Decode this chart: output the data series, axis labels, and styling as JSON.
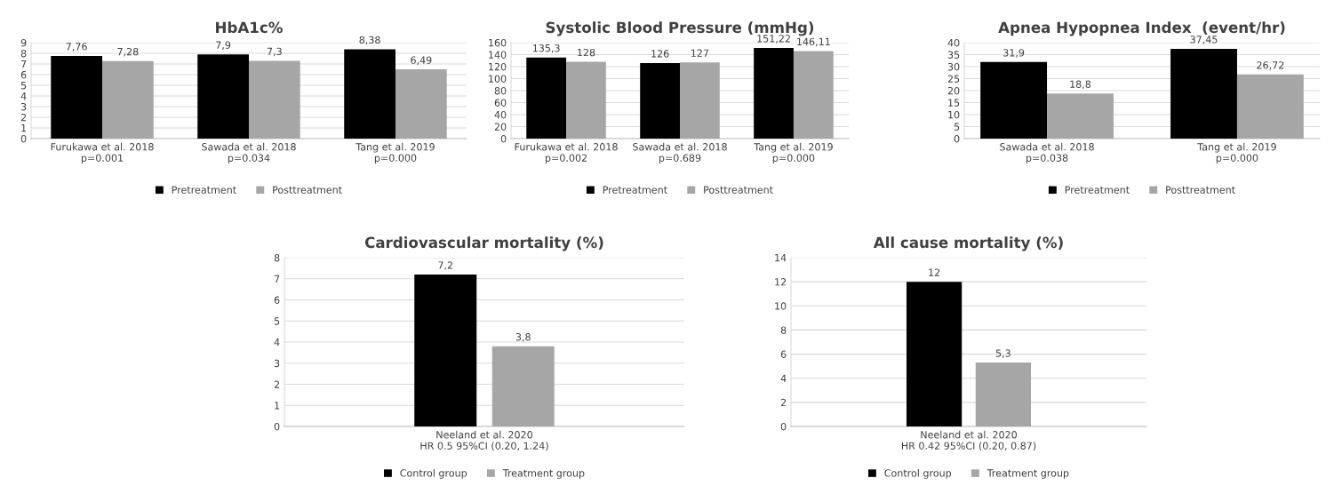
{
  "chart_data": [
    {
      "type": "bar",
      "title": "HbA1c%",
      "categories": [
        "Furukawa et al. 2018\np=0.001",
        "Sawada et al. 2018\np=0.034",
        "Tang et al. 2019\np=0.000"
      ],
      "series": [
        {
          "name": "Pretreatment",
          "color": "#000000",
          "values": [
            7.76,
            7.9,
            8.38
          ],
          "value_labels": [
            "7,76",
            "7,9",
            "8,38"
          ]
        },
        {
          "name": "Posttreatment",
          "color": "#a6a6a6",
          "values": [
            7.28,
            7.3,
            6.49
          ],
          "value_labels": [
            "7,28",
            "7,3",
            "6,49"
          ]
        }
      ],
      "ylim": [
        0,
        9
      ],
      "yticks": [
        0,
        1,
        2,
        3,
        4,
        5,
        6,
        7,
        8,
        9
      ],
      "grid": "y",
      "legend": "bottom"
    },
    {
      "type": "bar",
      "title": "Systolic Blood Pressure (mmHg)",
      "categories": [
        "Furukawa et al. 2018\np=0.002",
        "Sawada et al. 2018\np=0.689",
        "Tang et al. 2019\np=0.000"
      ],
      "series": [
        {
          "name": "Pretreatment",
          "color": "#000000",
          "values": [
            135.3,
            126,
            151.22
          ],
          "value_labels": [
            "135,3",
            "126",
            "151,22"
          ]
        },
        {
          "name": "Posttreatment",
          "color": "#a6a6a6",
          "values": [
            128,
            127,
            146.11
          ],
          "value_labels": [
            "128",
            "127",
            "146,11"
          ]
        }
      ],
      "ylim": [
        0,
        160
      ],
      "yticks": [
        0,
        20,
        40,
        60,
        80,
        100,
        120,
        140,
        160
      ],
      "grid": "y",
      "legend": "bottom"
    },
    {
      "type": "bar",
      "title": "Apnea Hypopnea Index  (event/hr)",
      "categories": [
        "Sawada et al. 2018\np=0.038",
        "Tang et al. 2019\np=0.000"
      ],
      "series": [
        {
          "name": "Pretreatment",
          "color": "#000000",
          "values": [
            31.9,
            37.45
          ],
          "value_labels": [
            "31,9",
            "37,45"
          ]
        },
        {
          "name": "Posttreatment",
          "color": "#a6a6a6",
          "values": [
            18.8,
            26.72
          ],
          "value_labels": [
            "18,8",
            "26,72"
          ]
        }
      ],
      "ylim": [
        0,
        40
      ],
      "yticks": [
        0,
        5,
        10,
        15,
        20,
        25,
        30,
        35,
        40
      ],
      "grid": "y",
      "legend": "bottom"
    },
    {
      "type": "bar",
      "title": "Cardiovascular mortality (%)",
      "categories": [
        "Neeland et al. 2020\nHR 0.5 95%CI (0.20, 1.24)"
      ],
      "series": [
        {
          "name": "Control group",
          "color": "#000000",
          "values": [
            7.2
          ],
          "value_labels": [
            "7,2"
          ]
        },
        {
          "name": "Treatment group",
          "color": "#a6a6a6",
          "values": [
            3.8
          ],
          "value_labels": [
            "3,8"
          ]
        }
      ],
      "ylim": [
        0,
        8
      ],
      "yticks": [
        0,
        1,
        2,
        3,
        4,
        5,
        6,
        7,
        8
      ],
      "grid": "y",
      "legend": "bottom"
    },
    {
      "type": "bar",
      "title": "All cause mortality (%)",
      "categories": [
        "Neeland et al. 2020\nHR 0.42 95%CI (0.20, 0.87)"
      ],
      "series": [
        {
          "name": "Control group",
          "color": "#000000",
          "values": [
            12
          ],
          "value_labels": [
            "12"
          ]
        },
        {
          "name": "Treatment group",
          "color": "#a6a6a6",
          "values": [
            5.3
          ],
          "value_labels": [
            "5,3"
          ]
        }
      ],
      "ylim": [
        0,
        14
      ],
      "yticks": [
        0,
        2,
        4,
        6,
        8,
        10,
        12,
        14
      ],
      "grid": "y",
      "legend": "bottom"
    }
  ]
}
